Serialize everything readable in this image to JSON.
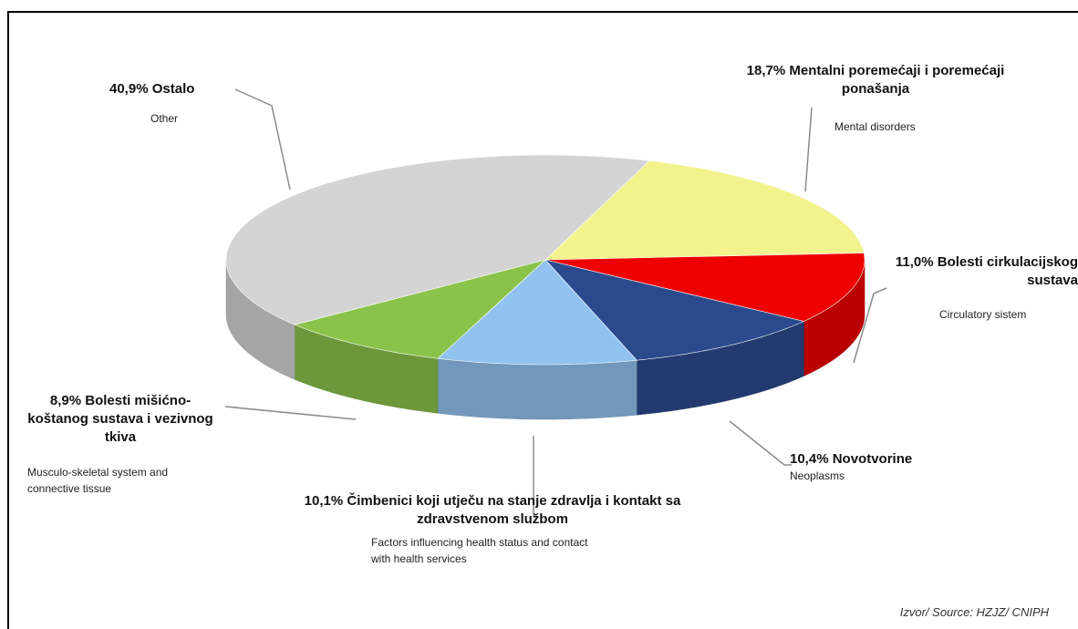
{
  "chart_data": {
    "type": "pie",
    "categories": [
      "Mentalni poremećaji i poremećaji ponašanja",
      "Bolesti cirkulacijskog sustava",
      "Novotvorine",
      "Čimbenici koji utječu na stanje zdravlja i kontakt sa zdravstvenom službom",
      "Bolesti mišićno-koštanog sustava i vezivnog tkiva",
      "Ostalo"
    ],
    "english_labels": [
      "Mental disorders",
      "Circulatory sistem",
      "Neoplasms",
      "Factors influencing health status and contact with health services",
      "Musculo-skeletal system and connective tissue",
      "Other"
    ],
    "values": [
      18.7,
      11.0,
      10.4,
      10.1,
      8.9,
      40.9
    ],
    "value_labels": [
      "18,7%",
      "11,0%",
      "10,4%",
      "10,1%",
      "8,9%",
      "40,9%"
    ],
    "colors": [
      "#f3f38e",
      "#ee0000",
      "#2b4a8e",
      "#92c2f0",
      "#8bc34a",
      "#d4d4d4"
    ],
    "source": "Izvor/ Source: HZJZ/ CNIPH"
  }
}
